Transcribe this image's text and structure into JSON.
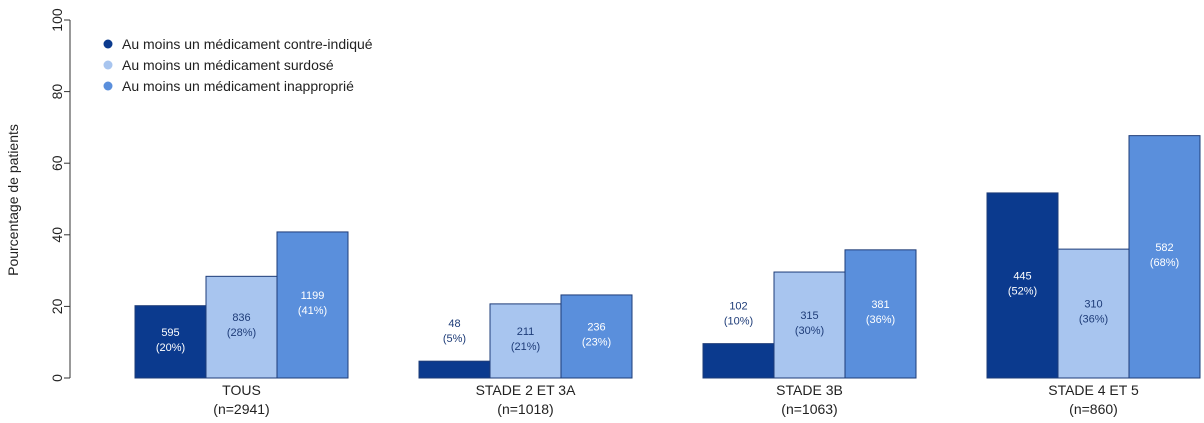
{
  "chart_data": {
    "type": "grouped-bar",
    "y_label": "Pourcentage de patients",
    "categories": [
      "TOUS\n(n=2941)",
      "STADE 2 ET 3A\n(n=1018)",
      "STADE 3B\n(n=1063)",
      "STADE 4 ET 5\n(n=860)"
    ],
    "series": [
      {
        "name": "Au moins un médicament contre-indiqué",
        "color": "#0b3a8e",
        "values": [
          20.2,
          4.7,
          9.6,
          51.7
        ],
        "value_labels": [
          "595\n(20%)",
          "48\n(5%)",
          "102\n(10%)",
          "445\n(52%)"
        ]
      },
      {
        "name": "Au moins un médicament surdosé",
        "color": "#a8c5ef",
        "values": [
          28.4,
          20.7,
          29.6,
          36.0
        ],
        "value_labels": [
          "836\n(28%)",
          "211\n(21%)",
          "315\n(30%)",
          "310\n(36%)"
        ]
      },
      {
        "name": "Au moins un médicament inapproprié",
        "color": "#5a8fdc",
        "values": [
          40.8,
          23.2,
          35.8,
          67.7
        ],
        "value_labels": [
          "1199\n(41%)",
          "236\n(23%)",
          "381\n(36%)",
          "582\n(68%)"
        ]
      }
    ],
    "ylim": [
      0,
      100
    ],
    "yticks": [
      0,
      20,
      40,
      60,
      80,
      100
    ],
    "legend": "top-left"
  }
}
